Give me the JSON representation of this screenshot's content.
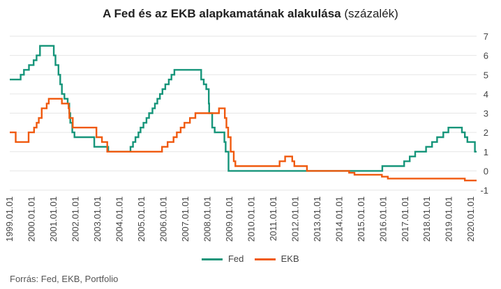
{
  "title": {
    "main": "A Fed és az EKB alapkamatának alakulása",
    "unit": "(százalék)"
  },
  "source": "Forrás: Fed, EKB, Portfolio",
  "colors": {
    "Fed": "#16957a",
    "EKB": "#f05a0f",
    "grid": "#e6e6e6",
    "text": "#444444"
  },
  "chart_data": {
    "type": "line",
    "title": "A Fed és az EKB alapkamatának alakulása (százalék)",
    "xlabel": "",
    "ylabel": "",
    "xlim": [
      "1999.01.01",
      "2020.03.31"
    ],
    "ylim": [
      -1,
      7
    ],
    "y_ticks": [
      -1,
      0,
      1,
      2,
      3,
      4,
      5,
      6,
      7
    ],
    "y_axis_side": "right",
    "x_tick_labels": [
      "1999.01.01",
      "2000.01.01",
      "2001.01.01",
      "2002.01.01",
      "2003.01.01",
      "2004.01.01",
      "2005.01.01",
      "2006.01.01",
      "2007.01.01",
      "2008.01.01",
      "2009.01.01",
      "2010.01.01",
      "2011.01.01",
      "2012.01.01",
      "2013.01.01",
      "2014.01.01",
      "2015.01.01",
      "2016.01.01",
      "2017.01.01",
      "2018.01.01",
      "2019.01.01",
      "2020.01.01"
    ],
    "grid": "horizontal",
    "legend_position": "bottom",
    "series": [
      {
        "name": "Fed",
        "step": true,
        "points": [
          [
            "1999.01.01",
            4.75
          ],
          [
            "1999.06.30",
            5.0
          ],
          [
            "1999.08.24",
            5.25
          ],
          [
            "1999.11.16",
            5.5
          ],
          [
            "2000.02.02",
            5.75
          ],
          [
            "2000.03.21",
            6.0
          ],
          [
            "2000.05.16",
            6.5
          ],
          [
            "2001.01.03",
            6.0
          ],
          [
            "2001.01.31",
            5.5
          ],
          [
            "2001.03.20",
            5.0
          ],
          [
            "2001.04.18",
            4.5
          ],
          [
            "2001.05.15",
            4.0
          ],
          [
            "2001.06.27",
            3.75
          ],
          [
            "2001.08.21",
            3.5
          ],
          [
            "2001.09.17",
            3.0
          ],
          [
            "2001.10.02",
            2.5
          ],
          [
            "2001.11.06",
            2.0
          ],
          [
            "2001.12.11",
            1.75
          ],
          [
            "2002.11.06",
            1.25
          ],
          [
            "2003.06.25",
            1.0
          ],
          [
            "2004.06.30",
            1.25
          ],
          [
            "2004.08.10",
            1.5
          ],
          [
            "2004.09.21",
            1.75
          ],
          [
            "2004.11.10",
            2.0
          ],
          [
            "2004.12.14",
            2.25
          ],
          [
            "2005.02.02",
            2.5
          ],
          [
            "2005.03.22",
            2.75
          ],
          [
            "2005.05.03",
            3.0
          ],
          [
            "2005.06.30",
            3.25
          ],
          [
            "2005.08.09",
            3.5
          ],
          [
            "2005.09.20",
            3.75
          ],
          [
            "2005.11.01",
            4.0
          ],
          [
            "2005.12.13",
            4.25
          ],
          [
            "2006.01.31",
            4.5
          ],
          [
            "2006.03.28",
            4.75
          ],
          [
            "2006.05.10",
            5.0
          ],
          [
            "2006.06.29",
            5.25
          ],
          [
            "2007.09.18",
            4.75
          ],
          [
            "2007.10.31",
            4.5
          ],
          [
            "2007.12.11",
            4.25
          ],
          [
            "2008.01.22",
            3.5
          ],
          [
            "2008.01.30",
            3.0
          ],
          [
            "2008.03.18",
            2.25
          ],
          [
            "2008.04.30",
            2.0
          ],
          [
            "2008.10.08",
            1.5
          ],
          [
            "2008.10.29",
            1.0
          ],
          [
            "2008.12.16",
            0.0
          ],
          [
            "2015.12.16",
            0.25
          ],
          [
            "2016.12.14",
            0.5
          ],
          [
            "2017.03.15",
            0.75
          ],
          [
            "2017.06.14",
            1.0
          ],
          [
            "2017.12.13",
            1.25
          ],
          [
            "2018.03.21",
            1.5
          ],
          [
            "2018.06.13",
            1.75
          ],
          [
            "2018.09.26",
            2.0
          ],
          [
            "2018.12.19",
            2.25
          ],
          [
            "2019.07.31",
            2.0
          ],
          [
            "2019.09.18",
            1.75
          ],
          [
            "2019.10.30",
            1.5
          ],
          [
            "2020.03.03",
            1.0
          ],
          [
            "2020.03.31",
            1.0
          ]
        ]
      },
      {
        "name": "EKB",
        "step": true,
        "points": [
          [
            "1999.01.01",
            2.0
          ],
          [
            "1999.04.09",
            1.5
          ],
          [
            "1999.11.10",
            2.0
          ],
          [
            "2000.02.09",
            2.25
          ],
          [
            "2000.03.22",
            2.5
          ],
          [
            "2000.04.28",
            2.75
          ],
          [
            "2000.06.15",
            3.25
          ],
          [
            "2000.09.06",
            3.5
          ],
          [
            "2000.10.11",
            3.75
          ],
          [
            "2001.05.15",
            3.5
          ],
          [
            "2001.09.05",
            3.25
          ],
          [
            "2001.09.18",
            2.75
          ],
          [
            "2001.11.14",
            2.25
          ],
          [
            "2002.12.11",
            1.75
          ],
          [
            "2003.03.12",
            1.5
          ],
          [
            "2003.06.09",
            1.0
          ],
          [
            "2005.12.06",
            1.25
          ],
          [
            "2006.03.08",
            1.5
          ],
          [
            "2006.06.15",
            1.75
          ],
          [
            "2006.08.09",
            2.0
          ],
          [
            "2006.10.11",
            2.25
          ],
          [
            "2006.12.13",
            2.5
          ],
          [
            "2007.03.14",
            2.75
          ],
          [
            "2007.06.13",
            3.0
          ],
          [
            "2008.07.09",
            3.25
          ],
          [
            "2008.10.15",
            2.75
          ],
          [
            "2008.11.12",
            2.25
          ],
          [
            "2008.12.10",
            1.75
          ],
          [
            "2009.01.21",
            1.0
          ],
          [
            "2009.03.11",
            0.5
          ],
          [
            "2009.04.08",
            0.25
          ],
          [
            "2011.04.13",
            0.5
          ],
          [
            "2011.07.13",
            0.75
          ],
          [
            "2011.11.09",
            0.5
          ],
          [
            "2011.12.14",
            0.25
          ],
          [
            "2012.07.11",
            0.0
          ],
          [
            "2014.06.11",
            -0.1
          ],
          [
            "2014.09.10",
            -0.2
          ],
          [
            "2015.12.09",
            -0.3
          ],
          [
            "2016.03.16",
            -0.4
          ],
          [
            "2019.09.18",
            -0.5
          ],
          [
            "2020.03.31",
            -0.5
          ]
        ]
      }
    ]
  }
}
